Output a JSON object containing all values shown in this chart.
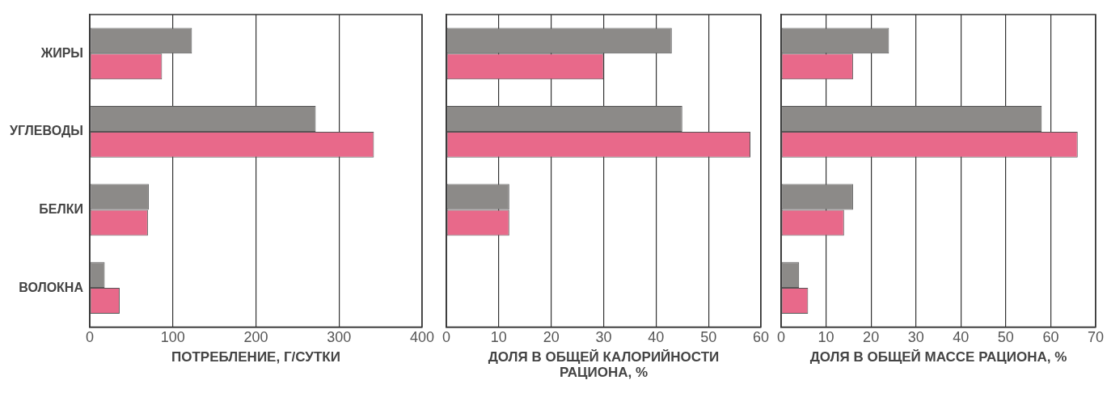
{
  "chart_data": [
    {
      "type": "bar",
      "orientation": "horizontal",
      "xlabel": "ПОТРЕБЛЕНИЕ, Г/СУТКИ",
      "categories": [
        "ЖИРЫ",
        "УГЛЕВОДЫ",
        "БЕЛКИ",
        "ВОЛОКНА"
      ],
      "series": [
        {
          "color": "#8c8a88",
          "values": [
            123,
            272,
            71,
            18
          ]
        },
        {
          "color": "#e8698a",
          "values": [
            87,
            342,
            70,
            36
          ]
        }
      ],
      "xlim": [
        0,
        400
      ],
      "xticks": [
        0,
        100,
        200,
        300,
        400
      ],
      "grid": "x",
      "legend": false
    },
    {
      "type": "bar",
      "orientation": "horizontal",
      "xlabel": "ДОЛЯ В ОБЩЕЙ КАЛОРИЙНОСТИ РАЦИОНА, %",
      "categories": [
        null,
        null,
        null,
        null
      ],
      "series": [
        {
          "color": "#8c8a88",
          "values": [
            43,
            45,
            12,
            null
          ]
        },
        {
          "color": "#e8698a",
          "values": [
            30,
            58,
            12,
            null
          ]
        }
      ],
      "xlim": [
        0,
        60
      ],
      "xticks": [
        0,
        10,
        20,
        30,
        40,
        50,
        60
      ],
      "grid": "x",
      "legend": false,
      "tick_labels": "x"
    },
    {
      "type": "bar",
      "orientation": "horizontal",
      "xlabel": "ДОЛЯ В ОБЩЕЙ МАССЕ РАЦИОНА, %",
      "categories": [
        null,
        null,
        null,
        null
      ],
      "series": [
        {
          "color": "#8c8a88",
          "values": [
            24,
            58,
            16,
            4
          ]
        },
        {
          "color": "#e8698a",
          "values": [
            16,
            66,
            14,
            6
          ]
        }
      ],
      "xlim": [
        0,
        70
      ],
      "xticks": [
        0,
        10,
        20,
        30,
        40,
        50,
        60,
        70
      ],
      "grid": "x",
      "legend": false,
      "tick_labels": "x"
    }
  ]
}
